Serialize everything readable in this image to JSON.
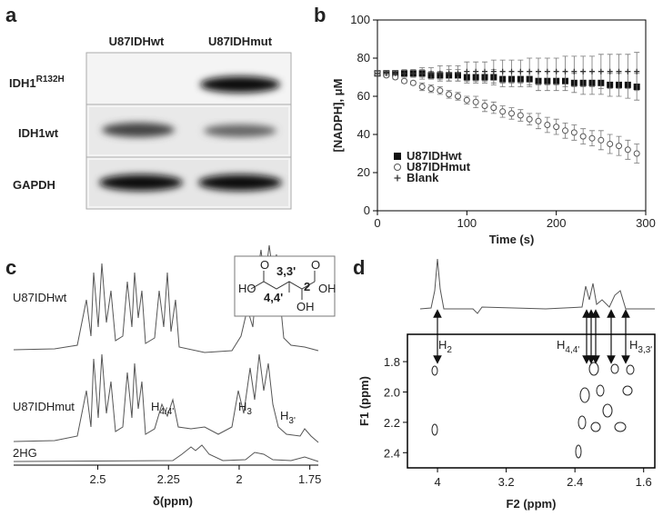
{
  "blot": {
    "panel": "a",
    "columns": [
      "U87IDHwt",
      "U87IDHmut"
    ],
    "rows": [
      {
        "label": "IDH1",
        "sup": "R132H"
      },
      {
        "label": "IDH1wt"
      },
      {
        "label": "GAPDH"
      }
    ]
  },
  "chart_data": [
    {
      "type": "scatter",
      "panel": "b",
      "xlabel": "Time (s)",
      "ylabel": "[NADPH], μM",
      "xlim": [
        0,
        300
      ],
      "ylim": [
        0,
        100
      ],
      "xticks": [
        0,
        100,
        200,
        300
      ],
      "yticks": [
        0,
        20,
        40,
        60,
        80,
        100
      ],
      "legend": "lower left",
      "x": [
        0,
        10,
        20,
        30,
        40,
        50,
        60,
        70,
        80,
        90,
        100,
        110,
        120,
        130,
        140,
        150,
        160,
        170,
        180,
        190,
        200,
        210,
        220,
        230,
        240,
        250,
        260,
        270,
        280,
        290
      ],
      "series": [
        {
          "name": "U87IDHwt",
          "marker": "square",
          "color": "#111111",
          "values": [
            72,
            72,
            72,
            72,
            72,
            72,
            71,
            71,
            71,
            71,
            70,
            70,
            70,
            70,
            69,
            69,
            69,
            69,
            68,
            68,
            68,
            68,
            67,
            67,
            67,
            67,
            66,
            66,
            66,
            65
          ],
          "errors": [
            1,
            1,
            1,
            1,
            2,
            2,
            2,
            2,
            3,
            3,
            3,
            3,
            3,
            4,
            4,
            4,
            4,
            4,
            5,
            5,
            5,
            5,
            5,
            6,
            6,
            6,
            6,
            6,
            7,
            7
          ]
        },
        {
          "name": "U87IDHmut",
          "marker": "circle",
          "color": "#555555",
          "values": [
            72,
            71,
            70,
            68,
            67,
            65,
            64,
            63,
            61,
            60,
            58,
            57,
            55,
            54,
            52,
            51,
            50,
            48,
            47,
            45,
            44,
            42,
            41,
            39,
            38,
            37,
            35,
            34,
            32,
            30
          ],
          "errors": [
            1,
            1,
            1,
            1,
            1,
            2,
            2,
            2,
            2,
            2,
            2,
            3,
            3,
            3,
            3,
            3,
            3,
            3,
            4,
            4,
            4,
            4,
            4,
            4,
            4,
            5,
            5,
            5,
            5,
            5
          ]
        },
        {
          "name": "Blank",
          "marker": "plus",
          "color": "#333333",
          "values": [
            72,
            72,
            72,
            72,
            72,
            72,
            72,
            72,
            72,
            72,
            73,
            73,
            73,
            73,
            73,
            73,
            73,
            73,
            73,
            73,
            73,
            73,
            73,
            73,
            73,
            73,
            73,
            73,
            73,
            73
          ],
          "errors": [
            1,
            1,
            1,
            2,
            2,
            3,
            3,
            4,
            4,
            4,
            5,
            5,
            5,
            6,
            6,
            6,
            6,
            7,
            7,
            7,
            7,
            8,
            8,
            8,
            8,
            9,
            9,
            9,
            9,
            10
          ]
        }
      ]
    },
    {
      "type": "spectrum",
      "panel": "c",
      "xlabel": "δ(ppm)",
      "xlim": [
        2.64,
        1.72
      ],
      "xticks": [
        2.5,
        2.25,
        2,
        1.75
      ],
      "traces": [
        "U87IDHwt",
        "U87IDHmut",
        "2HG"
      ],
      "annotations": [
        {
          "base": "H",
          "sub": "4/4'"
        },
        {
          "base": "H",
          "sub": "3"
        },
        {
          "base": "H",
          "sub": "3'"
        }
      ],
      "inset": [
        "3,3'",
        "2",
        "4,4'",
        "HO",
        "OH",
        "O",
        "O",
        "OH"
      ]
    },
    {
      "type": "contour",
      "panel": "d",
      "xlabel": "F2 (ppm)",
      "ylabel": "F1 (ppm)",
      "xlim": [
        4.35,
        1.47
      ],
      "ylim": [
        1.62,
        2.5
      ],
      "xticks": [
        4,
        3.2,
        2.4,
        1.6
      ],
      "yticks": [
        1.8,
        {
          "value": 2,
          "label": "2.0"
        },
        2.2,
        2.4
      ],
      "annotations": [
        {
          "base": "H",
          "sub": "2"
        },
        {
          "base": "H",
          "sub": "4,4'"
        },
        {
          "base": "H",
          "sub": "3,3'"
        }
      ]
    }
  ]
}
